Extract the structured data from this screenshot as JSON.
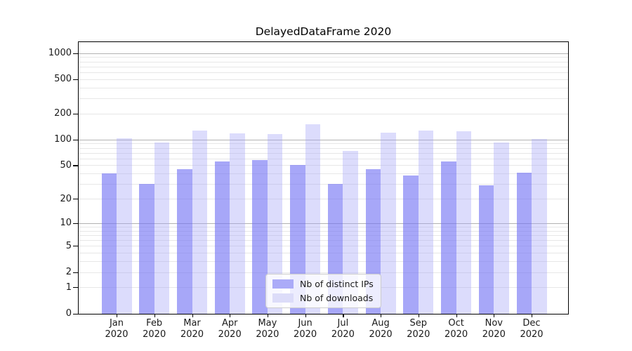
{
  "chart_data": {
    "type": "bar",
    "title": "DelayedDataFrame 2020",
    "categories": [
      "Jan 2020",
      "Feb 2020",
      "Mar 2020",
      "Apr 2020",
      "May 2020",
      "Jun 2020",
      "Jul 2020",
      "Aug 2020",
      "Sep 2020",
      "Oct 2020",
      "Nov 2020",
      "Dec 2020"
    ],
    "series": [
      {
        "name": "Nb of distinct IPs",
        "slug": "distinct-ips",
        "color": "#ababf8",
        "fill": "rgba(113,113,243,0.62)",
        "values": [
          40,
          30,
          45,
          55,
          58,
          50,
          30,
          45,
          38,
          55,
          29,
          41
        ]
      },
      {
        "name": "Nb of downloads",
        "slug": "downloads",
        "color": "#dcdcf9",
        "fill": "rgba(163,163,246,0.38)",
        "values": [
          104,
          93,
          127,
          117,
          115,
          151,
          74,
          121,
          128,
          124,
          93,
          101
        ]
      }
    ],
    "yscale": "log1p",
    "ylim": [
      0,
      1335
    ],
    "yticks": [
      1000,
      500,
      200,
      100,
      50,
      20,
      10,
      5,
      2,
      1,
      0
    ],
    "grid": true,
    "grid_major_values": [
      10,
      100,
      1000
    ],
    "legend": {
      "position": "lower center",
      "labels": [
        "Nb of distinct IPs",
        "Nb of downloads"
      ]
    },
    "colors": {
      "grid_major": "#b2b2b2",
      "grid_minor": "#e7e7e7",
      "axis": "#000000",
      "text": "#1a1a1a",
      "legend_border": "#cccccc"
    }
  }
}
